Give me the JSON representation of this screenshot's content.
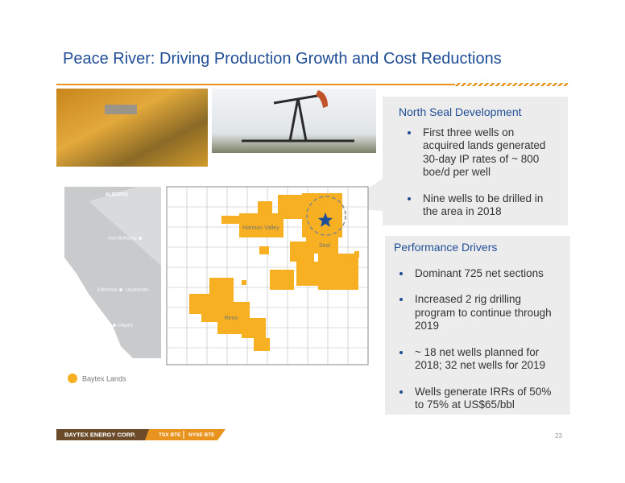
{
  "header": {
    "title": "Peace River: Driving Production Growth and Cost Reductions"
  },
  "north_seal": {
    "heading": "North Seal Development",
    "bullets": [
      "First three wells on acquired lands generated 30-day IP rates of ~ 800 boe/d per well",
      "Nine wells to be drilled in the area in 2018"
    ]
  },
  "performance": {
    "heading": "Performance Drivers",
    "bullets": [
      "Dominant 725 net sections",
      "Increased 2 rig drilling program to continue through 2019",
      "~ 18 net wells planned for 2018; 32 net wells for 2019",
      "Wells generate IRRs of 50% to 75% at US$65/bbl"
    ]
  },
  "map": {
    "province": "ALBERTA",
    "cities": [
      "Fort McMurray",
      "Edmonton",
      "Lloydminster",
      "Calgary"
    ],
    "areas": [
      "Harmon Valley",
      "Seal",
      "Reno"
    ],
    "legend": "Baytex Lands"
  },
  "footer": {
    "company": "BAYTEX ENERGY CORP.",
    "tsx": "TSX BTE",
    "nyse": "NYSE BTE",
    "page": "23"
  }
}
